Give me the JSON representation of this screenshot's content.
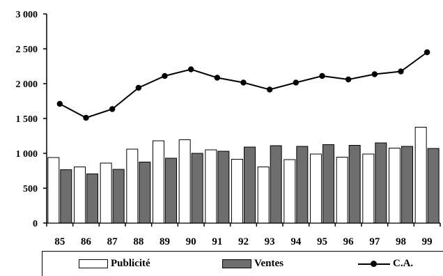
{
  "chart_data": {
    "type": "bar",
    "categories": [
      "85",
      "86",
      "87",
      "88",
      "89",
      "90",
      "91",
      "92",
      "93",
      "94",
      "95",
      "96",
      "97",
      "98",
      "99"
    ],
    "series": [
      {
        "name": "Publicité",
        "type": "bar",
        "color": "#ffffff",
        "values": [
          940,
          805,
          860,
          1060,
          1180,
          1195,
          1050,
          915,
          805,
          910,
          990,
          945,
          990,
          1075,
          1375
        ]
      },
      {
        "name": "Ventes",
        "type": "bar",
        "color": "#6e6e6e",
        "values": [
          765,
          705,
          770,
          875,
          930,
          1000,
          1030,
          1090,
          1110,
          1100,
          1125,
          1115,
          1150,
          1100,
          1070
        ]
      },
      {
        "name": "C.A.",
        "type": "line",
        "color": "#000000",
        "values": [
          1710,
          1510,
          1635,
          1940,
          2110,
          2205,
          2085,
          2015,
          1915,
          2015,
          2110,
          2060,
          2135,
          2175,
          2450
        ]
      }
    ],
    "ylim": [
      0,
      3000
    ],
    "yticks": [
      0,
      500,
      1000,
      1500,
      2000,
      2500,
      3000
    ],
    "ytick_labels": [
      "0",
      "500",
      "1 000",
      "1 500",
      "2 000",
      "2 500",
      "3 000"
    ],
    "grid": false,
    "legend_position": "bottom"
  },
  "legend": {
    "publicite": "Publicité",
    "ventes": "Ventes",
    "ca": "C.A."
  }
}
